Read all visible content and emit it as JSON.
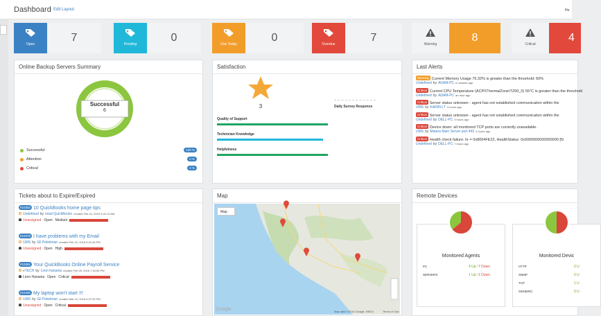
{
  "header": {
    "title": "Dashboard",
    "edit": "Edit Layout",
    "right": "Ho"
  },
  "tiles": [
    {
      "label": "Open",
      "value": "7",
      "color": "#3b82c4"
    },
    {
      "label": "Pending",
      "value": "0",
      "color": "#20b8d9"
    },
    {
      "label": "Due Today",
      "value": "0",
      "color": "#f29d2a"
    },
    {
      "label": "Overdue",
      "value": "7",
      "color": "#e2483b"
    },
    {
      "label": "Warning",
      "value": "8",
      "color": "#f29d2a"
    },
    {
      "label": "Critical",
      "value": "4",
      "color": "#e2483b"
    }
  ],
  "backup": {
    "title": "Online Backup Servers Summary",
    "center_label": "Successful",
    "center_value": "6",
    "legend": [
      {
        "name": "Successful",
        "value": "100 %",
        "color": "#8cc63f"
      },
      {
        "name": "Attention",
        "value": "0 %",
        "color": "#f29d2a"
      },
      {
        "name": "Critical",
        "value": "0 %",
        "color": "#e2483b"
      }
    ]
  },
  "satisfaction": {
    "title": "Satisfaction",
    "score": "3",
    "daily": "Daily Survey Responce",
    "bars": [
      {
        "name": "Quality of Support",
        "color": "#1fa463"
      },
      {
        "name": "Technician Knowledge",
        "color": "#20b8d9"
      },
      {
        "name": "Helpfulness",
        "color": "#1fa463"
      }
    ]
  },
  "alerts": {
    "title": "Last Alerts",
    "items": [
      {
        "level": "Warning",
        "text": "Current Memory Usage 76.32% is greater than the threshold: 60%",
        "source": "Undefined",
        "by": "by",
        "device": "ADAM-PC",
        "time": "6 minutes ago"
      },
      {
        "level": "Critical",
        "text": "Current CPU Temperature (ACPI\\ThermalZone\\TZ00_0) 55°C is greater than the threshold",
        "source": "Undefined",
        "by": "by",
        "device": "ADAM-PC",
        "time": "an hour ago"
      },
      {
        "level": "Critical",
        "text": "Server status unknown - agent has not established communication within the",
        "source": "UMS",
        "by": "by",
        "device": "KARIN-LT",
        "time": "3 hours ago"
      },
      {
        "level": "Critical",
        "text": "Server status unknown - agent has not established communication within the",
        "source": "Undefined",
        "by": "by",
        "device": "DELL-PC",
        "time": "3 hours ago"
      },
      {
        "level": "Critical",
        "text": "Device down: all monitored TCP ports are currently unavailable.",
        "source": "UMS",
        "by": "by",
        "device": "Matera Main Server port 443",
        "time": "4 hours ago"
      },
      {
        "level": "Critical",
        "text": "Health check failure: hr = 0x8004FE22, HealthStatus: 0x0000000000000000 [N",
        "source": "Undefined",
        "by": "by",
        "device": "DELL-PC",
        "time": "7 hours ago"
      }
    ]
  },
  "tickets": {
    "title": "Tickets about to Expire/Expired",
    "items": [
      {
        "id": "#10382",
        "subject": "10 QuickBooks home page tips",
        "account": "Undefined",
        "by": "by",
        "creator": "Intuit QuickBooks",
        "created": "created Feb 24, 2016 9:42:13 AM",
        "assignee": "Unassigned",
        "status": "Open",
        "priority": "Medium"
      },
      {
        "id": "#10378",
        "subject": "I have problems with my Email",
        "account": "UMS",
        "by": "by",
        "creator": "Gil Pekelman",
        "created": "created Feb 22, 2016 5:22:48 PM",
        "assignee": "Unassigned",
        "status": "Open",
        "priority": "High"
      },
      {
        "id": "#10381",
        "subject": "Your QuickBooks Online Payroll Service",
        "account": "eTECH",
        "by": "by",
        "creator": "Liron hanania",
        "created": "created Feb 25, 2016 7:40:55 PM",
        "assignee": "Liron Hanania",
        "status": "Open",
        "priority": "Critical"
      },
      {
        "id": "#10465",
        "subject": "My laptop won't start !!!",
        "account": "UMS",
        "by": "by",
        "creator": "Gil Pekelman",
        "created": "created Mar 10, 2016 6:37:29 PM",
        "assignee": "Unassigned",
        "status": "Open",
        "priority": "Critical"
      }
    ]
  },
  "map": {
    "title": "Map",
    "dropdown": "Map",
    "google": "Google",
    "attribution": "Map data ©2016 Google, INEGI",
    "terms": "Terms of Use"
  },
  "remote": {
    "title": "Remote Devices",
    "cards": [
      {
        "title": "Monitored Agents",
        "rows": [
          {
            "name": "PC",
            "up": "4 Up",
            "sep": "/",
            "down": "7 Down"
          },
          {
            "name": "SERVERS",
            "up": "1 Up",
            "sep": "/",
            "down": "1 Down"
          }
        ]
      },
      {
        "title": "Monitored Devic",
        "rows": [
          {
            "name": "HTTP",
            "up": "0 U"
          },
          {
            "name": "SNMP",
            "up": "0 U"
          },
          {
            "name": "TCP",
            "up": "1 U"
          },
          {
            "name": "GENERIC",
            "up": "0 U"
          }
        ]
      }
    ]
  }
}
